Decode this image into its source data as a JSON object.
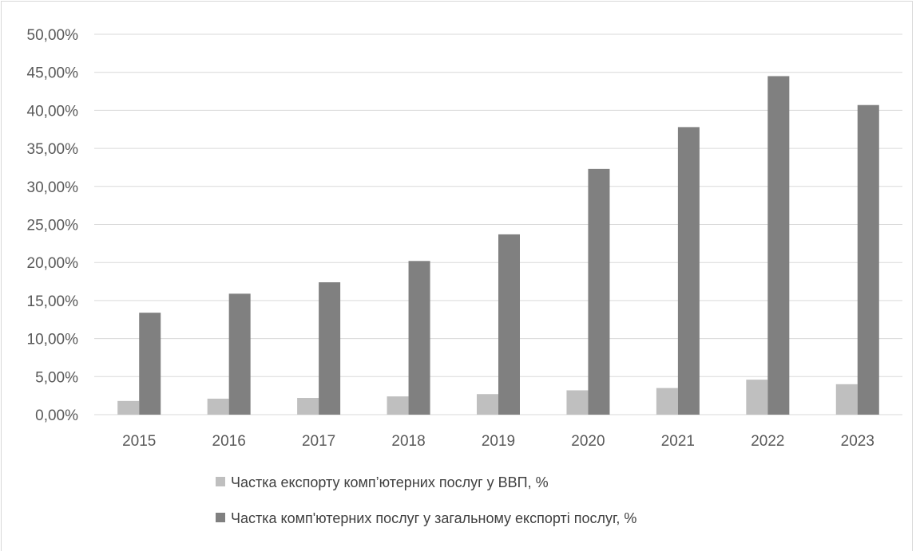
{
  "chart_data": {
    "type": "bar",
    "title": "",
    "xlabel": "",
    "ylabel": "",
    "categories": [
      "2015",
      "2016",
      "2017",
      "2018",
      "2019",
      "2020",
      "2021",
      "2022",
      "2023"
    ],
    "ylim": [
      0,
      50
    ],
    "y_ticks": [
      "0,00%",
      "5,00%",
      "10,00%",
      "15,00%",
      "20,00%",
      "25,00%",
      "30,00%",
      "35,00%",
      "40,00%",
      "45,00%",
      "50,00%"
    ],
    "grid": true,
    "legend_position": "bottom",
    "series": [
      {
        "name": "Частка експорту комп’ютерних послуг у ВВП, %",
        "color": "#bfbfbf",
        "values": [
          1.8,
          2.1,
          2.2,
          2.4,
          2.7,
          3.2,
          3.5,
          4.6,
          4.0
        ]
      },
      {
        "name": "Частка комп'ютерних послуг у загальному експорті послуг, %",
        "color": "#808080",
        "values": [
          13.4,
          15.9,
          17.4,
          20.2,
          23.7,
          32.3,
          37.8,
          44.5,
          40.7
        ]
      }
    ]
  }
}
